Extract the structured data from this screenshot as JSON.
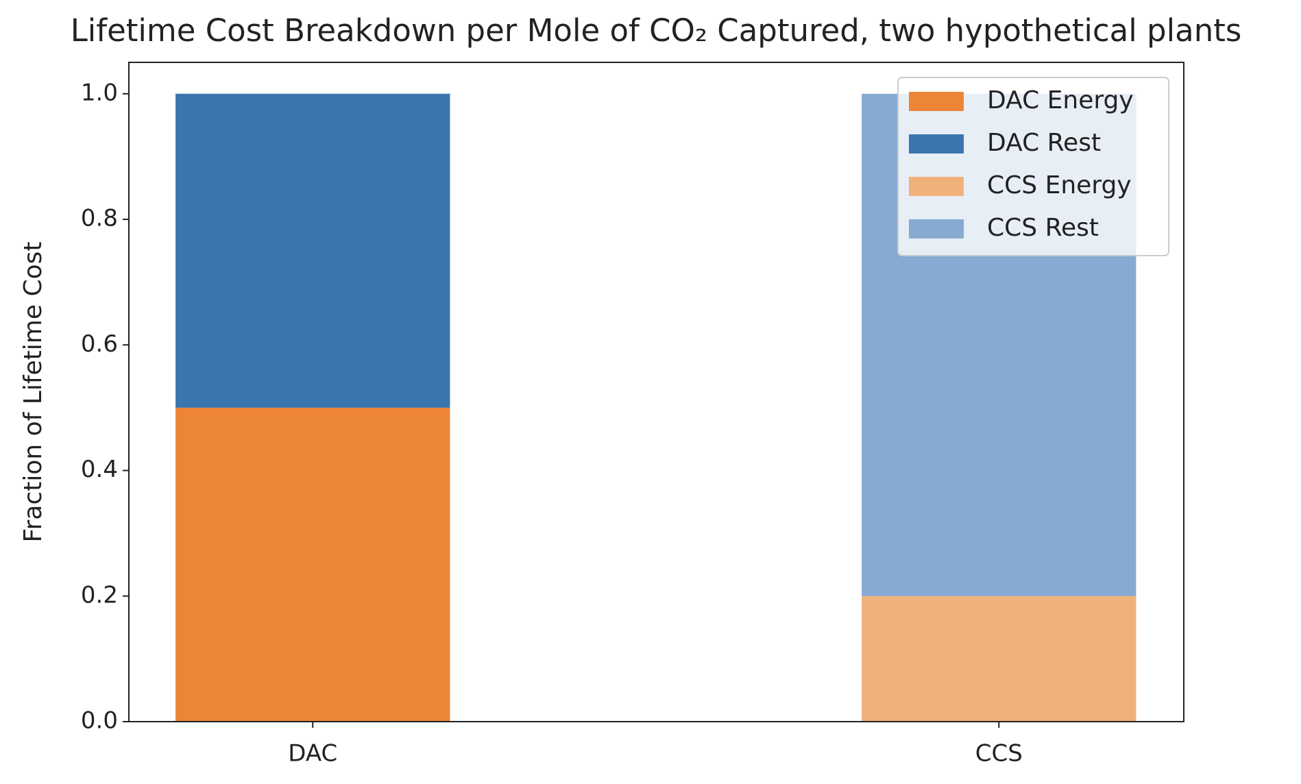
{
  "chart_data": {
    "type": "stacked_bar",
    "title": "Lifetime Cost Breakdown per Mole of CO₂ Captured, two hypothetical plants",
    "ylabel": "Fraction of Lifetime Cost",
    "categories": [
      "DAC",
      "CCS"
    ],
    "series": [
      {
        "name": "DAC Energy",
        "color": "#ed8536",
        "values": [
          0.5,
          null
        ]
      },
      {
        "name": "DAC Rest",
        "color": "#3a75af",
        "values": [
          0.5,
          null
        ]
      },
      {
        "name": "CCS Energy",
        "color": "#f0b27a",
        "values": [
          null,
          0.2
        ]
      },
      {
        "name": "CCS Rest",
        "color": "#86aad1",
        "values": [
          null,
          0.8
        ]
      }
    ],
    "ylim": [
      0,
      1.05
    ],
    "yticks": [
      {
        "value": 0,
        "label": "0.0"
      },
      {
        "value": 0.2,
        "label": "0.2"
      },
      {
        "value": 0.4,
        "label": "0.4"
      },
      {
        "value": 0.6,
        "label": "0.6"
      },
      {
        "value": 0.8,
        "label": "0.8"
      },
      {
        "value": 1,
        "label": "1.0"
      }
    ],
    "grid": false,
    "legend": "upper right"
  }
}
